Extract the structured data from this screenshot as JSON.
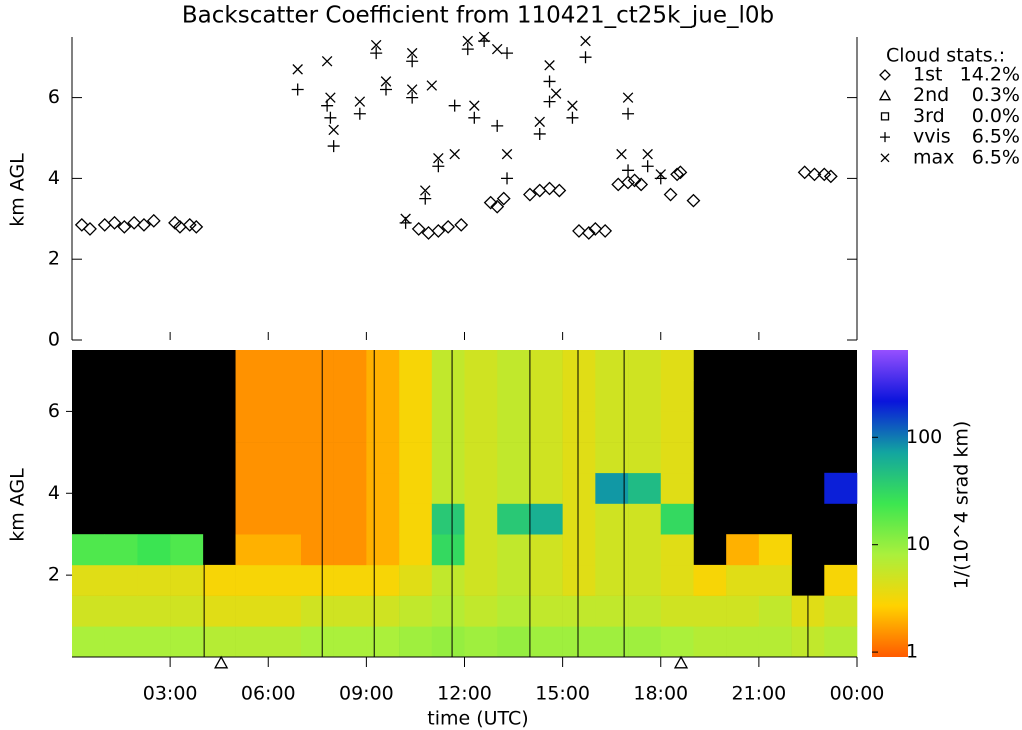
{
  "chart_data": [
    {
      "type": "scatter",
      "title": "Backscatter Coefficient from 110421_ct25k_jue_l0b",
      "ylabel": "km AGL",
      "legend_title": "Cloud stats.:",
      "xlim": [
        0,
        24
      ],
      "xticks": [
        3,
        6,
        9,
        12,
        15,
        18,
        21,
        24
      ],
      "ylim": [
        0,
        7.5
      ],
      "yticks": [
        0,
        2,
        4,
        6
      ],
      "series": [
        {
          "name": "1st",
          "marker": "diamond",
          "stat": 14.2,
          "stat_label": "14.2%",
          "x": [
            0.3,
            0.55,
            1.0,
            1.3,
            1.6,
            1.9,
            2.2,
            2.5,
            3.15,
            3.3,
            3.6,
            3.8,
            10.6,
            10.9,
            11.2,
            11.5,
            11.9,
            12.8,
            13.0,
            13.2,
            14.0,
            14.3,
            14.6,
            14.9,
            15.5,
            15.8,
            16.0,
            16.3,
            16.7,
            17.0,
            17.2,
            17.4,
            18.3,
            18.5,
            18.6,
            19.0,
            22.4,
            22.7,
            23.0,
            23.2
          ],
          "y": [
            2.85,
            2.75,
            2.85,
            2.9,
            2.8,
            2.9,
            2.85,
            2.95,
            2.9,
            2.8,
            2.85,
            2.8,
            2.75,
            2.65,
            2.7,
            2.8,
            2.85,
            3.4,
            3.3,
            3.5,
            3.6,
            3.7,
            3.75,
            3.7,
            2.7,
            2.65,
            2.75,
            2.7,
            3.85,
            3.9,
            3.95,
            3.85,
            3.6,
            4.1,
            4.15,
            3.45,
            4.15,
            4.1,
            4.1,
            4.05
          ]
        },
        {
          "name": "2nd",
          "marker": "triangle",
          "stat": 0.3,
          "stat_label": "0.3%",
          "x": [],
          "y": []
        },
        {
          "name": "3rd",
          "marker": "square",
          "stat": 0,
          "stat_label": "0.0%",
          "x": [],
          "y": []
        },
        {
          "name": "vvis",
          "marker": "plus",
          "stat": 6.5,
          "stat_label": "6.5%",
          "x": [
            6.9,
            7.8,
            7.9,
            8.0,
            8.8,
            9.3,
            9.6,
            10.2,
            10.4,
            10.4,
            10.8,
            11.2,
            11.7,
            12.1,
            12.3,
            12.6,
            13.0,
            13.3,
            13.3,
            14.3,
            14.6,
            14.6,
            15.3,
            15.7,
            17.0,
            17.0,
            17.6,
            18.0
          ],
          "y": [
            6.2,
            5.8,
            5.5,
            4.8,
            5.6,
            7.1,
            6.2,
            2.9,
            6.0,
            6.9,
            3.5,
            4.3,
            5.8,
            7.2,
            5.5,
            7.4,
            5.3,
            4.0,
            7.1,
            5.1,
            5.9,
            6.4,
            5.5,
            7.0,
            5.6,
            4.2,
            4.3,
            4.0
          ]
        },
        {
          "name": "max",
          "marker": "cross",
          "stat": 6.5,
          "stat_label": "6.5%",
          "x": [
            6.9,
            7.8,
            7.9,
            8.0,
            8.8,
            9.3,
            9.6,
            10.2,
            10.4,
            10.4,
            10.8,
            11.0,
            11.2,
            11.7,
            12.1,
            12.3,
            12.6,
            13.0,
            13.3,
            14.3,
            14.6,
            14.8,
            15.3,
            15.7,
            16.8,
            17.0,
            17.6,
            18.0
          ],
          "y": [
            6.7,
            6.9,
            6.0,
            5.2,
            5.9,
            7.3,
            6.4,
            3.0,
            7.1,
            6.2,
            3.7,
            6.3,
            4.5,
            4.6,
            7.4,
            5.8,
            7.5,
            7.2,
            4.6,
            5.4,
            6.8,
            6.1,
            5.8,
            7.4,
            4.6,
            6.0,
            4.6,
            4.1
          ]
        }
      ]
    },
    {
      "type": "heatmap",
      "ylabel": "km AGL",
      "xlabel": "time (UTC)",
      "colorbar_label": "1/(10^4 srad km)",
      "xlim": [
        0,
        24
      ],
      "xticks": [
        {
          "value": 3,
          "label": "03:00"
        },
        {
          "value": 6,
          "label": "06:00"
        },
        {
          "value": 9,
          "label": "09:00"
        },
        {
          "value": 12,
          "label": "12:00"
        },
        {
          "value": 15,
          "label": "15:00"
        },
        {
          "value": 18,
          "label": "18:00"
        },
        {
          "value": 21,
          "label": "21:00"
        },
        {
          "value": 24,
          "label": "00:00"
        }
      ],
      "ylim": [
        0,
        7.5
      ],
      "yticks": [
        2,
        4,
        6
      ],
      "clim": [
        0.9,
        650
      ],
      "cticks": [
        1,
        10,
        100
      ],
      "clog": true,
      "colormap": [
        "#ff5a00",
        "#ffd200",
        "#aaf03c",
        "#3ce650",
        "#12a5a0",
        "#0a14dc",
        "#9650ff"
      ],
      "dividers": [
        4.04,
        7.65,
        9.24,
        11.62,
        14.0,
        15.47,
        16.88,
        22.5
      ],
      "triangles": [
        4.56,
        18.62
      ],
      "x_edges": [
        0,
        1,
        2,
        3,
        4,
        5,
        6,
        7,
        8,
        9,
        10,
        11,
        12,
        13,
        14,
        15,
        16,
        17,
        18,
        19,
        20,
        21,
        22,
        23,
        24
      ],
      "y_edges": [
        0,
        0.75,
        1.5,
        2.25,
        3,
        3.75,
        4.5,
        5.25,
        6,
        6.75,
        7.5
      ],
      "z": [
        [
          8,
          5,
          4,
          20,
          null,
          null,
          null,
          null,
          null,
          null
        ],
        [
          8,
          5,
          4,
          20,
          null,
          null,
          null,
          null,
          null,
          null
        ],
        [
          8,
          5,
          4,
          25,
          null,
          null,
          null,
          null,
          null,
          null
        ],
        [
          8,
          5,
          4,
          20,
          null,
          null,
          null,
          null,
          null,
          null
        ],
        [
          7,
          4,
          3,
          null,
          null,
          null,
          null,
          null,
          null,
          null
        ],
        [
          7,
          4,
          3,
          2,
          1.5,
          1.5,
          1.5,
          1.5,
          1.5,
          1.5
        ],
        [
          7,
          4,
          3,
          2,
          1.5,
          1.5,
          1.5,
          1.5,
          1.5,
          1.5
        ],
        [
          8,
          5,
          3,
          1.5,
          1.5,
          1.5,
          1.5,
          1.5,
          1.5,
          1.5
        ],
        [
          8,
          5,
          3,
          1.5,
          1.5,
          1.5,
          1.5,
          1.5,
          1.5,
          1.5
        ],
        [
          8,
          5,
          3,
          2,
          2,
          2,
          2,
          2,
          2,
          2
        ],
        [
          9,
          6,
          4,
          3,
          3,
          3,
          3,
          3,
          3,
          3
        ],
        [
          10,
          7,
          6,
          30,
          40,
          6,
          6,
          6,
          6,
          6
        ],
        [
          9,
          6,
          5,
          5,
          5,
          5,
          5,
          5,
          5,
          5
        ],
        [
          10,
          7,
          6,
          6,
          40,
          6,
          6,
          6,
          6,
          6
        ],
        [
          9,
          6,
          5,
          5,
          60,
          5,
          5,
          5,
          5,
          5
        ],
        [
          9,
          6,
          4,
          4,
          4,
          4,
          4,
          4,
          4,
          4
        ],
        [
          9,
          6,
          5,
          5,
          5,
          80,
          5,
          5,
          5,
          5
        ],
        [
          9,
          6,
          5,
          5,
          5,
          50,
          5,
          5,
          5,
          5
        ],
        [
          8,
          5,
          4,
          4,
          30,
          4,
          4,
          4,
          4,
          4
        ],
        [
          7,
          5,
          3,
          null,
          null,
          null,
          null,
          null,
          null,
          null
        ],
        [
          7,
          5,
          4,
          2,
          null,
          null,
          null,
          null,
          null,
          null
        ],
        [
          7,
          6,
          4,
          3,
          null,
          null,
          null,
          null,
          null,
          null
        ],
        [
          6,
          4,
          null,
          null,
          null,
          null,
          null,
          null,
          null,
          null
        ],
        [
          7,
          5,
          3,
          null,
          null,
          200,
          null,
          null,
          null,
          null
        ]
      ]
    }
  ]
}
